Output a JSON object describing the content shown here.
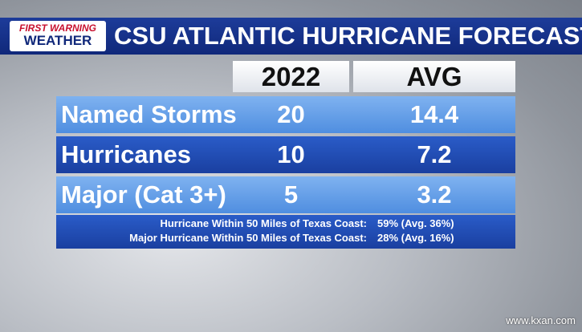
{
  "logo": {
    "line1": "FIRST WARNING",
    "line2": "WEATHER"
  },
  "header": {
    "title": "CSU ATLANTIC HURRICANE FORECAST"
  },
  "table": {
    "columns": [
      "2022",
      "AVG"
    ],
    "rows": [
      [
        "Named Storms",
        "20",
        "14.4"
      ],
      [
        "Hurricanes",
        "10",
        "7.2"
      ],
      [
        "Major (Cat 3+)",
        "5",
        "3.2"
      ]
    ]
  },
  "notes": [
    {
      "label": "Hurricane Within 50 Miles of Texas Coast:",
      "value": "59% (Avg. 36%)"
    },
    {
      "label": "Major Hurricane Within 50 Miles of Texas Coast:",
      "value": "28% (Avg. 16%)"
    }
  ],
  "watermark": "www.kxan.com"
}
